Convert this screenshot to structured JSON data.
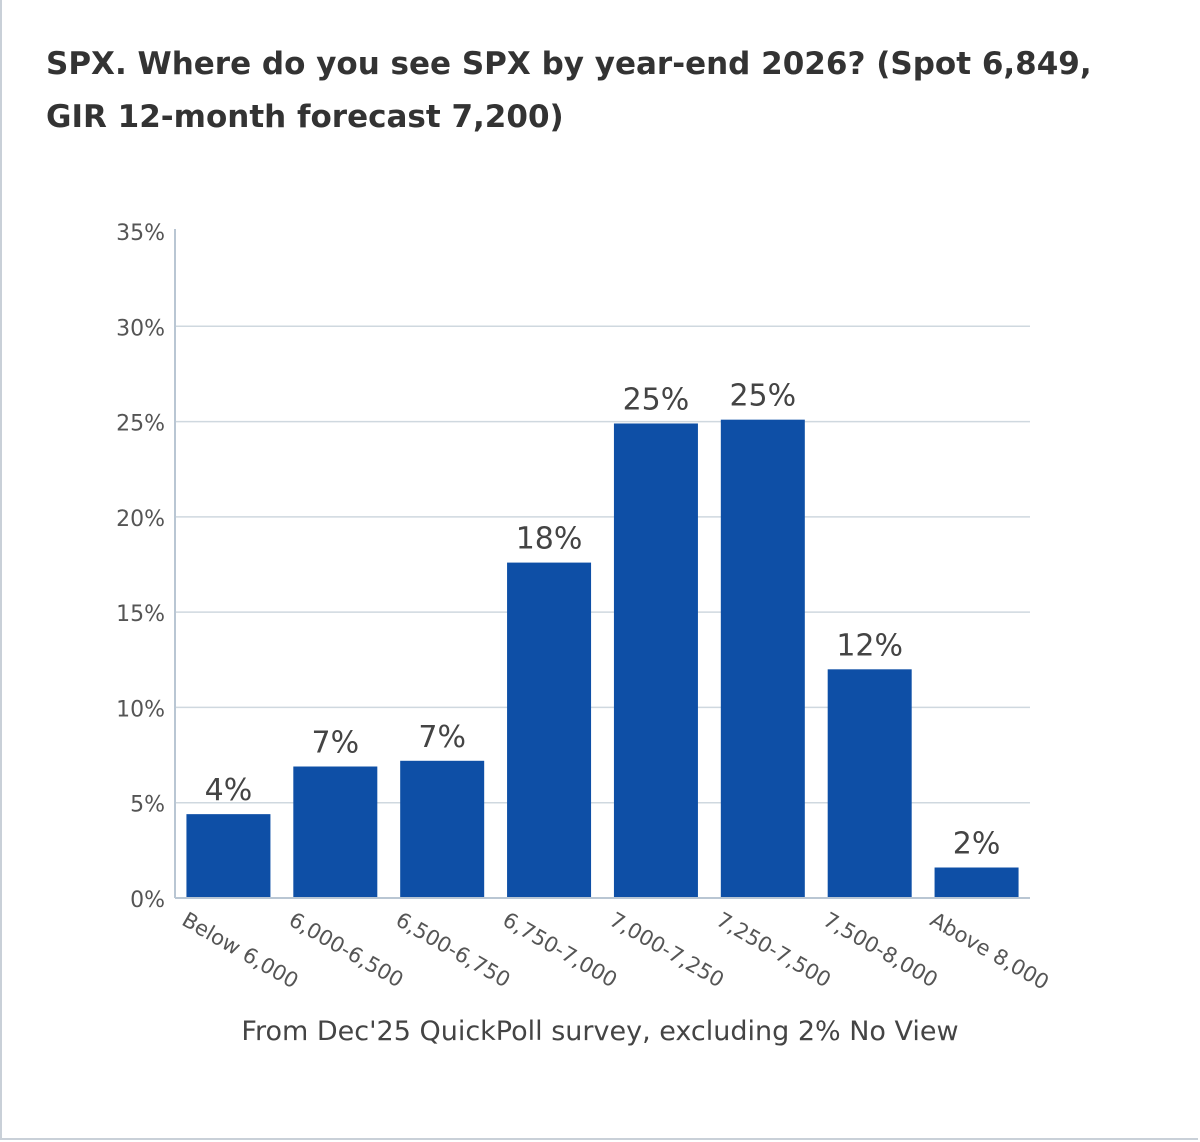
{
  "chart_data": {
    "type": "bar",
    "title": "SPX. Where do you see SPX by year-end 2026? (Spot 6,849, GIR 12-month forecast 7,200)",
    "categories": [
      "Below 6,000",
      "6,000-6,500",
      "6,500-6,750",
      "6,750-7,000",
      "7,000-7,250",
      "7,250-7,500",
      "7,500-8,000",
      "Above 8,000"
    ],
    "values": [
      4.4,
      6.9,
      7.2,
      17.6,
      24.9,
      25.1,
      12.0,
      1.6
    ],
    "data_labels": [
      "4%",
      "7%",
      "7%",
      "18%",
      "25%",
      "25%",
      "12%",
      "2%"
    ],
    "yticks": [
      "0%",
      "5%",
      "10%",
      "15%",
      "20%",
      "25%",
      "30%",
      "35%"
    ],
    "ylim": [
      0,
      35
    ],
    "grid": true,
    "bar_color": "#0e4fa6",
    "note": "From Dec'25 QuickPoll survey, excluding 2% No View"
  }
}
